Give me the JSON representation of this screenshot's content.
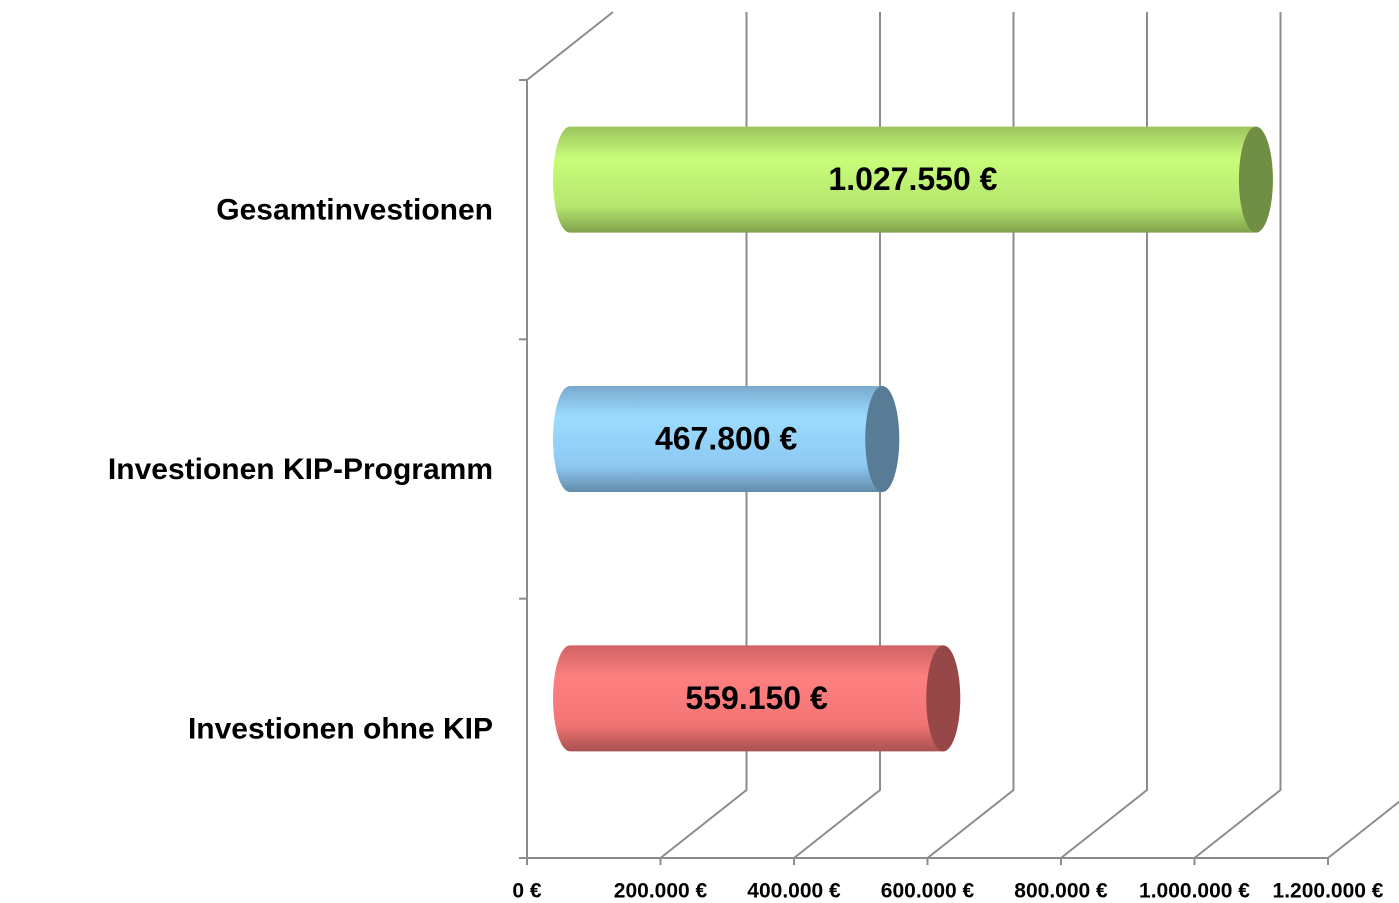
{
  "chart_data": {
    "type": "bar",
    "orientation": "horizontal",
    "categories": [
      "Gesamtinvestionen",
      "Investionen KIP-Programm",
      "Investionen ohne KIP"
    ],
    "values": [
      1027550,
      467800,
      559150
    ],
    "value_labels": [
      "1.027.550 €",
      "467.800 €",
      "559.150 €"
    ],
    "colors": [
      "#b6e66e",
      "#8ec8f2",
      "#f27474"
    ],
    "xlim": [
      0,
      1200000
    ],
    "xticks": [
      {
        "value": 0,
        "label": "0 €"
      },
      {
        "value": 200000,
        "label": "200.000 €"
      },
      {
        "value": 400000,
        "label": "400.000 €"
      },
      {
        "value": 600000,
        "label": "600.000 €"
      },
      {
        "value": 800000,
        "label": "800.000 €"
      },
      {
        "value": 1000000,
        "label": "1.000.000 €"
      },
      {
        "value": 1200000,
        "label": "1.200.000 €"
      }
    ],
    "grid": true
  }
}
